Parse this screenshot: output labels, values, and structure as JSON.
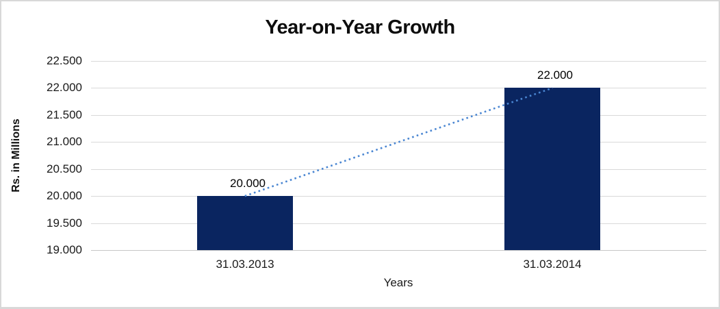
{
  "chart_data": {
    "type": "bar",
    "title": "Year-on-Year Growth",
    "xlabel": "Years",
    "ylabel": "Rs. in Millions",
    "categories": [
      "31.03.2013",
      "31.03.2014"
    ],
    "values": [
      20000,
      22000
    ],
    "data_labels": [
      "20.000",
      "22.000"
    ],
    "y_ticks": [
      {
        "value": 19000,
        "label": "19.000"
      },
      {
        "value": 19500,
        "label": "19.500"
      },
      {
        "value": 20000,
        "label": "20.000"
      },
      {
        "value": 20500,
        "label": "20.500"
      },
      {
        "value": 21000,
        "label": "21.000"
      },
      {
        "value": 21500,
        "label": "21.500"
      },
      {
        "value": 22000,
        "label": "22.000"
      },
      {
        "value": 22500,
        "label": "22.500"
      }
    ],
    "ylim": [
      19000,
      22500
    ],
    "grid": true,
    "legend": "none",
    "colors": {
      "bar": "#0a2560",
      "trendline": "#4a86d2",
      "gridline": "#d9d9d9",
      "text": "#0d0d0d",
      "border": "#d8d8d8"
    },
    "trendline": {
      "style": "dotted",
      "from_value": 20000,
      "to_value": 22000
    }
  }
}
